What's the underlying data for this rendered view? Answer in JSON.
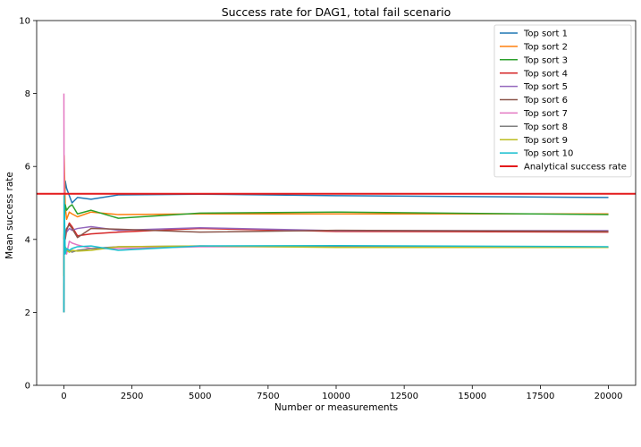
{
  "chart_data": {
    "type": "line",
    "title": "Success rate for DAG1, total fail scenario",
    "xlabel": "Number or measurements",
    "ylabel": "Mean success rate",
    "xlim": [
      -1000,
      21000
    ],
    "ylim": [
      0,
      10
    ],
    "xticks": [
      0,
      2500,
      5000,
      7500,
      10000,
      12500,
      15000,
      17500,
      20000
    ],
    "yticks": [
      0,
      2,
      4,
      6,
      8,
      10
    ],
    "grid": false,
    "legend_position": "top-right",
    "series": [
      {
        "name": "Top sort 1",
        "color": "#1f77b4",
        "x": [
          1,
          10,
          50,
          100,
          200,
          300,
          500,
          1000,
          2000,
          5000,
          10000,
          20000
        ],
        "y": [
          2.0,
          4.3,
          5.6,
          5.4,
          5.2,
          5.0,
          5.15,
          5.1,
          5.22,
          5.24,
          5.2,
          5.15
        ]
      },
      {
        "name": "Top sort 2",
        "color": "#ff7f0e",
        "x": [
          1,
          10,
          50,
          100,
          200,
          300,
          500,
          1000,
          2000,
          5000,
          10000,
          20000
        ],
        "y": [
          2.0,
          6.3,
          4.9,
          4.55,
          4.75,
          4.7,
          4.62,
          4.75,
          4.68,
          4.7,
          4.7,
          4.7
        ]
      },
      {
        "name": "Top sort 3",
        "color": "#2ca02c",
        "x": [
          1,
          10,
          50,
          100,
          200,
          300,
          500,
          1000,
          2000,
          5000,
          10000,
          20000
        ],
        "y": [
          3.0,
          4.5,
          4.95,
          4.8,
          4.9,
          4.95,
          4.7,
          4.8,
          4.58,
          4.72,
          4.75,
          4.68
        ]
      },
      {
        "name": "Top sort 4",
        "color": "#d62728",
        "x": [
          1,
          10,
          50,
          100,
          200,
          300,
          500,
          1000,
          2000,
          5000,
          10000,
          20000
        ],
        "y": [
          3.0,
          4.2,
          4.0,
          4.25,
          4.45,
          4.35,
          4.1,
          4.15,
          4.2,
          4.3,
          4.22,
          4.2
        ]
      },
      {
        "name": "Top sort 5",
        "color": "#9467bd",
        "x": [
          1,
          10,
          50,
          100,
          200,
          300,
          500,
          1000,
          2000,
          5000,
          10000,
          20000
        ],
        "y": [
          3.0,
          4.4,
          4.2,
          4.2,
          4.3,
          4.25,
          4.3,
          4.35,
          4.25,
          4.32,
          4.24,
          4.24
        ]
      },
      {
        "name": "Top sort 6",
        "color": "#8c564b",
        "x": [
          1,
          10,
          50,
          100,
          200,
          300,
          500,
          1000,
          2000,
          5000,
          10000,
          20000
        ],
        "y": [
          4.0,
          4.2,
          4.1,
          4.3,
          4.4,
          4.3,
          4.05,
          4.3,
          4.28,
          4.2,
          4.25,
          4.22
        ]
      },
      {
        "name": "Top sort 7",
        "color": "#e377c2",
        "x": [
          1,
          10,
          50,
          100,
          200,
          300,
          500,
          1000,
          2000,
          5000,
          10000,
          20000
        ],
        "y": [
          8.0,
          4.0,
          3.7,
          3.6,
          3.95,
          3.9,
          3.85,
          3.75,
          3.75,
          3.8,
          3.8,
          3.78
        ]
      },
      {
        "name": "Top sort 8",
        "color": "#7f7f7f",
        "x": [
          1,
          10,
          50,
          100,
          200,
          300,
          500,
          1000,
          2000,
          5000,
          10000,
          20000
        ],
        "y": [
          2.0,
          3.8,
          3.7,
          3.7,
          3.7,
          3.65,
          3.7,
          3.75,
          3.8,
          3.82,
          3.8,
          3.78
        ]
      },
      {
        "name": "Top sort 9",
        "color": "#bcbd22",
        "x": [
          1,
          10,
          50,
          100,
          200,
          300,
          500,
          1000,
          2000,
          5000,
          10000,
          20000
        ],
        "y": [
          3.0,
          3.6,
          3.8,
          3.7,
          3.65,
          3.7,
          3.68,
          3.7,
          3.8,
          3.82,
          3.78,
          3.78
        ]
      },
      {
        "name": "Top sort 10",
        "color": "#17becf",
        "x": [
          1,
          10,
          50,
          100,
          200,
          300,
          500,
          1000,
          2000,
          5000,
          10000,
          20000
        ],
        "y": [
          2.0,
          5.2,
          3.6,
          3.75,
          3.7,
          3.75,
          3.8,
          3.82,
          3.7,
          3.82,
          3.83,
          3.8
        ]
      }
    ],
    "reference_line": {
      "name": "Analytical success rate",
      "y": 5.25,
      "color": "#e41a1c"
    }
  }
}
